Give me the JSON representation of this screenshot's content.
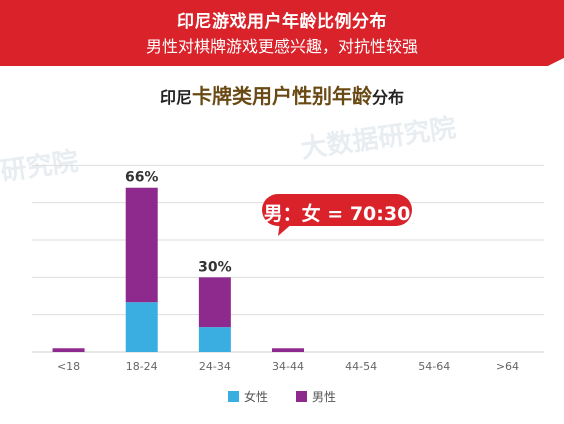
{
  "banner": {
    "title": "印尼游戏用户年龄比例分布",
    "subtitle": "男性对棋牌游戏更感兴趣，对抗性较强"
  },
  "chart_title": {
    "part1": "印尼",
    "part2": "卡牌类用户性别年龄",
    "part3": "分布"
  },
  "callout": {
    "text": "男：女 = 70:30"
  },
  "watermark": {
    "text1": "研究院",
    "text2": "大数据研究院"
  },
  "colors": {
    "banner": "#d9222a",
    "female": "#3aaee0",
    "male": "#8e2a8e",
    "grid": "#dddddd"
  },
  "chart_data": {
    "type": "bar",
    "stacked": true,
    "categories": [
      "<18",
      "18-24",
      "24-34",
      "34-44",
      "44-54",
      "54-64",
      ">64"
    ],
    "series": [
      {
        "name": "女性",
        "color": "#3aaee0",
        "values": [
          0,
          20,
          10,
          0,
          0,
          0,
          0
        ]
      },
      {
        "name": "男性",
        "color": "#8e2a8e",
        "values": [
          1.5,
          46,
          20,
          1.5,
          0,
          0,
          0
        ]
      }
    ],
    "data_labels": [
      "",
      "66%",
      "30%",
      "",
      "",
      "",
      ""
    ],
    "ylim": [
      0,
      90
    ],
    "grid": true,
    "legend_position": "bottom"
  }
}
